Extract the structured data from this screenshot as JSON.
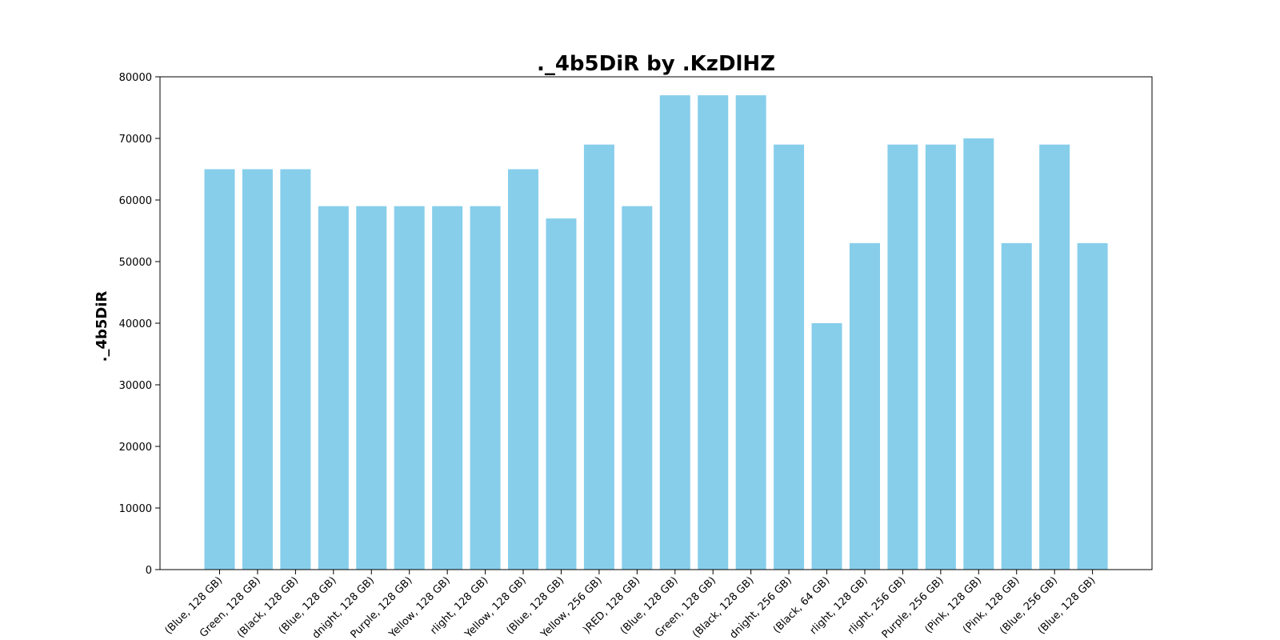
{
  "chart_data": {
    "type": "bar",
    "title": "._4b5DiR  by  .KzDlHZ",
    "xlabel": "",
    "ylabel": "._4b5DiR",
    "ylim": [
      0,
      80000
    ],
    "yticks": [
      "0",
      "10000",
      "20000",
      "30000",
      "40000",
      "50000",
      "60000",
      "70000",
      "80000"
    ],
    "grid": false,
    "categories": [
      "(Blue, 128 GB)",
      "Green, 128 GB)",
      "(Black, 128 GB)",
      "(Blue, 128 GB)",
      "dnight, 128 GB)",
      "Purple, 128 GB)",
      "Yellow, 128 GB)",
      "rlight, 128 GB)",
      "Yellow, 128 GB)",
      "(Blue, 128 GB)",
      "Yellow, 256 GB)",
      ")RED, 128 GB)",
      "(Blue, 128 GB)",
      "Green, 128 GB)",
      "(Black, 128 GB)",
      "dnight, 256 GB)",
      "(Black, 64 GB)",
      "rlight, 128 GB)",
      "rlight, 256 GB)",
      "Purple, 256 GB)",
      "(Pink, 128 GB)",
      "(Pink, 128 GB)",
      "(Blue, 256 GB)",
      "(Blue, 128 GB)"
    ],
    "values": [
      65000,
      65000,
      65000,
      59000,
      59000,
      59000,
      59000,
      59000,
      65000,
      57000,
      69000,
      59000,
      77000,
      77000,
      77000,
      69000,
      40000,
      53000,
      69000,
      69000,
      70000,
      53000,
      69000,
      53000
    ],
    "bar_color": "#87ceeb"
  }
}
